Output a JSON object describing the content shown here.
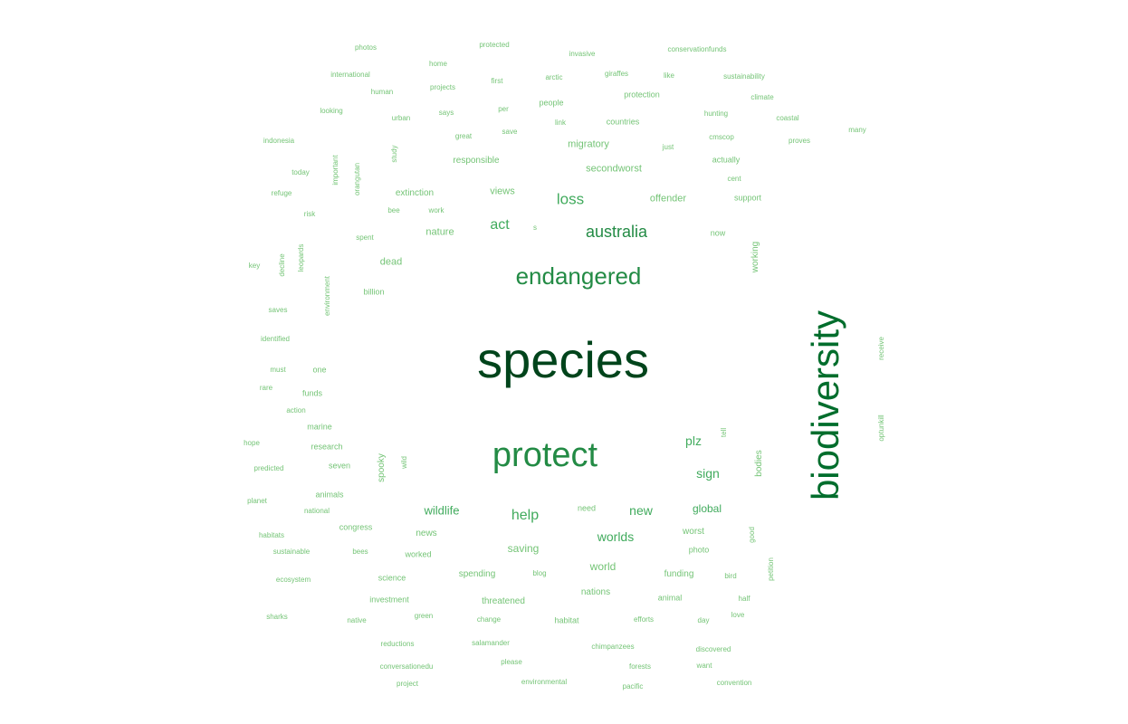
{
  "palette": {
    "t1": "#00441b",
    "t2": "#006d2c",
    "t3": "#238b45",
    "t4": "#41ab5d",
    "t5": "#74c476"
  },
  "words": [
    {
      "text": "species",
      "tone": "t1",
      "size": 56,
      "vertical": false
    },
    {
      "text": "biodiversity",
      "tone": "t2",
      "size": 42,
      "vertical": true
    },
    {
      "text": "protect",
      "tone": "t3",
      "size": 38,
      "vertical": false
    },
    {
      "text": "endangered",
      "tone": "t3",
      "size": 26,
      "vertical": false
    },
    {
      "text": "australia",
      "tone": "t3",
      "size": 18,
      "vertical": false
    },
    {
      "text": "loss",
      "tone": "t4",
      "size": 17,
      "vertical": false
    },
    {
      "text": "act",
      "tone": "t4",
      "size": 16,
      "vertical": false
    },
    {
      "text": "help",
      "tone": "t4",
      "size": 16,
      "vertical": false
    },
    {
      "text": "worlds",
      "tone": "t4",
      "size": 14,
      "vertical": false
    },
    {
      "text": "sign",
      "tone": "t4",
      "size": 14,
      "vertical": false
    },
    {
      "text": "plz",
      "tone": "t4",
      "size": 14,
      "vertical": false
    },
    {
      "text": "new",
      "tone": "t4",
      "size": 14,
      "vertical": false
    },
    {
      "text": "wildlife",
      "tone": "t4",
      "size": 13,
      "vertical": false
    },
    {
      "text": "global",
      "tone": "t4",
      "size": 12,
      "vertical": false
    },
    {
      "text": "saving",
      "tone": "t5",
      "size": 12,
      "vertical": false
    },
    {
      "text": "world",
      "tone": "t5",
      "size": 12,
      "vertical": false
    },
    {
      "text": "nature",
      "tone": "t5",
      "size": 11,
      "vertical": false
    },
    {
      "text": "views",
      "tone": "t5",
      "size": 11,
      "vertical": false
    },
    {
      "text": "secondworst",
      "tone": "t5",
      "size": 11,
      "vertical": false
    },
    {
      "text": "migratory",
      "tone": "t5",
      "size": 11,
      "vertical": false
    },
    {
      "text": "offender",
      "tone": "t5",
      "size": 11,
      "vertical": false
    },
    {
      "text": "dead",
      "tone": "t5",
      "size": 11,
      "vertical": false
    },
    {
      "text": "news",
      "tone": "t5",
      "size": 10,
      "vertical": false
    },
    {
      "text": "spooky",
      "tone": "t5",
      "size": 10,
      "vertical": true
    },
    {
      "text": "bodies",
      "tone": "t5",
      "size": 10,
      "vertical": true
    },
    {
      "text": "working",
      "tone": "t5",
      "size": 10,
      "vertical": true
    },
    {
      "text": "threatened",
      "tone": "t5",
      "size": 10,
      "vertical": false
    },
    {
      "text": "spending",
      "tone": "t5",
      "size": 10,
      "vertical": false
    },
    {
      "text": "nations",
      "tone": "t5",
      "size": 10,
      "vertical": false
    },
    {
      "text": "funding",
      "tone": "t5",
      "size": 10,
      "vertical": false
    },
    {
      "text": "worst",
      "tone": "t5",
      "size": 10,
      "vertical": false
    },
    {
      "text": "extinction",
      "tone": "t5",
      "size": 10,
      "vertical": false
    },
    {
      "text": "responsible",
      "tone": "t5",
      "size": 10,
      "vertical": false
    },
    {
      "text": "countries",
      "tone": "t5",
      "size": 9,
      "vertical": false
    },
    {
      "text": "protection",
      "tone": "t5",
      "size": 9,
      "vertical": false
    },
    {
      "text": "people",
      "tone": "t5",
      "size": 9,
      "vertical": false
    },
    {
      "text": "actually",
      "tone": "t5",
      "size": 9,
      "vertical": false
    },
    {
      "text": "support",
      "tone": "t5",
      "size": 9,
      "vertical": false
    },
    {
      "text": "now",
      "tone": "t5",
      "size": 9,
      "vertical": false
    },
    {
      "text": "billion",
      "tone": "t5",
      "size": 9,
      "vertical": false
    },
    {
      "text": "marine",
      "tone": "t5",
      "size": 9,
      "vertical": false
    },
    {
      "text": "need",
      "tone": "t5",
      "size": 9,
      "vertical": false
    },
    {
      "text": "animal",
      "tone": "t5",
      "size": 9,
      "vertical": false
    },
    {
      "text": "habitat",
      "tone": "t5",
      "size": 9,
      "vertical": false
    },
    {
      "text": "photo",
      "tone": "t5",
      "size": 9,
      "vertical": false
    },
    {
      "text": "congress",
      "tone": "t5",
      "size": 9,
      "vertical": false
    },
    {
      "text": "animals",
      "tone": "t5",
      "size": 9,
      "vertical": false
    },
    {
      "text": "research",
      "tone": "t5",
      "size": 9,
      "vertical": false
    },
    {
      "text": "worked",
      "tone": "t5",
      "size": 9,
      "vertical": false
    },
    {
      "text": "seven",
      "tone": "t5",
      "size": 9,
      "vertical": false
    },
    {
      "text": "one",
      "tone": "t5",
      "size": 9,
      "vertical": false
    },
    {
      "text": "funds",
      "tone": "t5",
      "size": 9,
      "vertical": false
    },
    {
      "text": "science",
      "tone": "t5",
      "size": 9,
      "vertical": false
    },
    {
      "text": "investment",
      "tone": "t5",
      "size": 9,
      "vertical": false
    },
    {
      "text": "photos",
      "tone": "t5",
      "size": 8,
      "vertical": false
    },
    {
      "text": "protected",
      "tone": "t5",
      "size": 8,
      "vertical": false
    },
    {
      "text": "invasive",
      "tone": "t5",
      "size": 8,
      "vertical": false
    },
    {
      "text": "conservationfunds",
      "tone": "t5",
      "size": 8,
      "vertical": false
    },
    {
      "text": "home",
      "tone": "t5",
      "size": 8,
      "vertical": false
    },
    {
      "text": "international",
      "tone": "t5",
      "size": 8,
      "vertical": false
    },
    {
      "text": "arctic",
      "tone": "t5",
      "size": 8,
      "vertical": false
    },
    {
      "text": "giraffes",
      "tone": "t5",
      "size": 8,
      "vertical": false
    },
    {
      "text": "like",
      "tone": "t5",
      "size": 8,
      "vertical": false
    },
    {
      "text": "sustainability",
      "tone": "t5",
      "size": 8,
      "vertical": false
    },
    {
      "text": "first",
      "tone": "t5",
      "size": 8,
      "vertical": false
    },
    {
      "text": "human",
      "tone": "t5",
      "size": 8,
      "vertical": false
    },
    {
      "text": "projects",
      "tone": "t5",
      "size": 8,
      "vertical": false
    },
    {
      "text": "climate",
      "tone": "t5",
      "size": 8,
      "vertical": false
    },
    {
      "text": "looking",
      "tone": "t5",
      "size": 8,
      "vertical": false
    },
    {
      "text": "per",
      "tone": "t5",
      "size": 8,
      "vertical": false
    },
    {
      "text": "hunting",
      "tone": "t5",
      "size": 8,
      "vertical": false
    },
    {
      "text": "urban",
      "tone": "t5",
      "size": 8,
      "vertical": false
    },
    {
      "text": "says",
      "tone": "t5",
      "size": 8,
      "vertical": false
    },
    {
      "text": "link",
      "tone": "t5",
      "size": 8,
      "vertical": false
    },
    {
      "text": "coastal",
      "tone": "t5",
      "size": 8,
      "vertical": false
    },
    {
      "text": "save",
      "tone": "t5",
      "size": 8,
      "vertical": false
    },
    {
      "text": "many",
      "tone": "t5",
      "size": 8,
      "vertical": false
    },
    {
      "text": "indonesia",
      "tone": "t5",
      "size": 8,
      "vertical": false
    },
    {
      "text": "great",
      "tone": "t5",
      "size": 8,
      "vertical": false
    },
    {
      "text": "cmscop",
      "tone": "t5",
      "size": 8,
      "vertical": false
    },
    {
      "text": "proves",
      "tone": "t5",
      "size": 8,
      "vertical": false
    },
    {
      "text": "study",
      "tone": "t5",
      "size": 8,
      "vertical": true
    },
    {
      "text": "just",
      "tone": "t5",
      "size": 8,
      "vertical": false
    },
    {
      "text": "today",
      "tone": "t5",
      "size": 8,
      "vertical": false
    },
    {
      "text": "important",
      "tone": "t5",
      "size": 8,
      "vertical": true
    },
    {
      "text": "orangutan",
      "tone": "t5",
      "size": 8,
      "vertical": true
    },
    {
      "text": "cent",
      "tone": "t5",
      "size": 8,
      "vertical": false
    },
    {
      "text": "refuge",
      "tone": "t5",
      "size": 8,
      "vertical": false
    },
    {
      "text": "bee",
      "tone": "t5",
      "size": 8,
      "vertical": false
    },
    {
      "text": "work",
      "tone": "t5",
      "size": 8,
      "vertical": false
    },
    {
      "text": "risk",
      "tone": "t5",
      "size": 8,
      "vertical": false
    },
    {
      "text": "s",
      "tone": "t5",
      "size": 8,
      "vertical": false
    },
    {
      "text": "spent",
      "tone": "t5",
      "size": 8,
      "vertical": false
    },
    {
      "text": "key",
      "tone": "t5",
      "size": 8,
      "vertical": false
    },
    {
      "text": "decline",
      "tone": "t5",
      "size": 8,
      "vertical": true
    },
    {
      "text": "leopards",
      "tone": "t5",
      "size": 8,
      "vertical": true
    },
    {
      "text": "environment",
      "tone": "t5",
      "size": 8,
      "vertical": true
    },
    {
      "text": "saves",
      "tone": "t5",
      "size": 8,
      "vertical": false
    },
    {
      "text": "identified",
      "tone": "t5",
      "size": 8,
      "vertical": false
    },
    {
      "text": "receive",
      "tone": "t5",
      "size": 8,
      "vertical": true
    },
    {
      "text": "must",
      "tone": "t5",
      "size": 8,
      "vertical": false
    },
    {
      "text": "rare",
      "tone": "t5",
      "size": 8,
      "vertical": false
    },
    {
      "text": "action",
      "tone": "t5",
      "size": 8,
      "vertical": false
    },
    {
      "text": "tell",
      "tone": "t5",
      "size": 8,
      "vertical": true
    },
    {
      "text": "optunkill",
      "tone": "t5",
      "size": 8,
      "vertical": true
    },
    {
      "text": "hope",
      "tone": "t5",
      "size": 8,
      "vertical": false
    },
    {
      "text": "wild",
      "tone": "t5",
      "size": 8,
      "vertical": true
    },
    {
      "text": "predicted",
      "tone": "t5",
      "size": 8,
      "vertical": false
    },
    {
      "text": "planet",
      "tone": "t5",
      "size": 8,
      "vertical": false
    },
    {
      "text": "national",
      "tone": "t5",
      "size": 8,
      "vertical": false
    },
    {
      "text": "good",
      "tone": "t5",
      "size": 8,
      "vertical": true
    },
    {
      "text": "habitats",
      "tone": "t5",
      "size": 8,
      "vertical": false
    },
    {
      "text": "sustainable",
      "tone": "t5",
      "size": 8,
      "vertical": false
    },
    {
      "text": "bees",
      "tone": "t5",
      "size": 8,
      "vertical": false
    },
    {
      "text": "blog",
      "tone": "t5",
      "size": 8,
      "vertical": false
    },
    {
      "text": "bird",
      "tone": "t5",
      "size": 8,
      "vertical": false
    },
    {
      "text": "petition",
      "tone": "t5",
      "size": 8,
      "vertical": true
    },
    {
      "text": "ecosystem",
      "tone": "t5",
      "size": 8,
      "vertical": false
    },
    {
      "text": "half",
      "tone": "t5",
      "size": 8,
      "vertical": false
    },
    {
      "text": "sharks",
      "tone": "t5",
      "size": 8,
      "vertical": false
    },
    {
      "text": "green",
      "tone": "t5",
      "size": 8,
      "vertical": false
    },
    {
      "text": "change",
      "tone": "t5",
      "size": 8,
      "vertical": false
    },
    {
      "text": "efforts",
      "tone": "t5",
      "size": 8,
      "vertical": false
    },
    {
      "text": "day",
      "tone": "t5",
      "size": 8,
      "vertical": false
    },
    {
      "text": "love",
      "tone": "t5",
      "size": 8,
      "vertical": false
    },
    {
      "text": "native",
      "tone": "t5",
      "size": 8,
      "vertical": false
    },
    {
      "text": "reductions",
      "tone": "t5",
      "size": 8,
      "vertical": false
    },
    {
      "text": "salamander",
      "tone": "t5",
      "size": 8,
      "vertical": false
    },
    {
      "text": "chimpanzees",
      "tone": "t5",
      "size": 8,
      "vertical": false
    },
    {
      "text": "discovered",
      "tone": "t5",
      "size": 8,
      "vertical": false
    },
    {
      "text": "please",
      "tone": "t5",
      "size": 8,
      "vertical": false
    },
    {
      "text": "conversationedu",
      "tone": "t5",
      "size": 8,
      "vertical": false
    },
    {
      "text": "forests",
      "tone": "t5",
      "size": 8,
      "vertical": false
    },
    {
      "text": "want",
      "tone": "t5",
      "size": 8,
      "vertical": false
    },
    {
      "text": "project",
      "tone": "t5",
      "size": 8,
      "vertical": false
    },
    {
      "text": "environmental",
      "tone": "t5",
      "size": 8,
      "vertical": false
    },
    {
      "text": "pacific",
      "tone": "t5",
      "size": 8,
      "vertical": false
    },
    {
      "text": "convention",
      "tone": "t5",
      "size": 8,
      "vertical": false
    }
  ]
}
